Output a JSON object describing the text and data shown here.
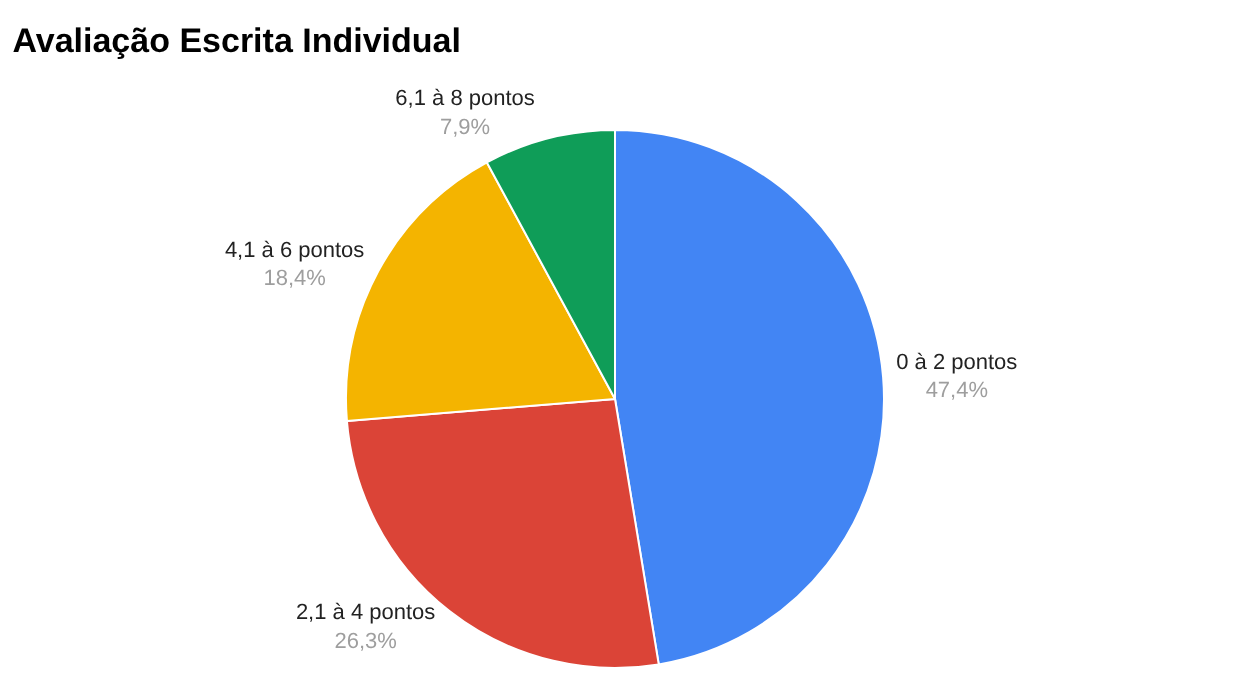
{
  "chart_data": {
    "type": "pie",
    "title": "Avaliação Escrita Individual",
    "categories": [
      "0 à 2 pontos",
      "2,1 à 4 pontos",
      "4,1 à 6 pontos",
      "6,1 à 8 pontos"
    ],
    "values": [
      47.4,
      26.3,
      18.4,
      7.9
    ],
    "value_labels": [
      "47,4%",
      "26,3%",
      "18,4%",
      "7,9%"
    ],
    "colors": [
      "#4285f4",
      "#db4437",
      "#f4b400",
      "#0f9d58"
    ],
    "legend": false
  }
}
